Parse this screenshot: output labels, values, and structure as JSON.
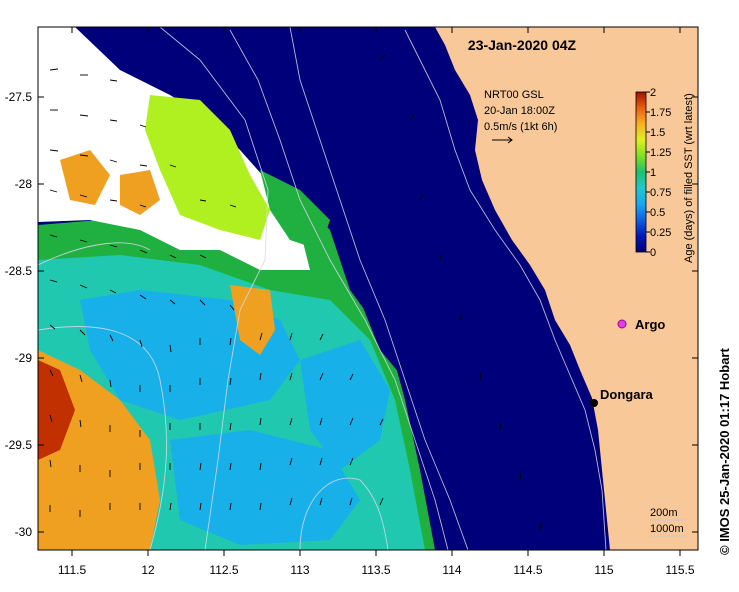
{
  "map": {
    "date_label": "23-Jan-2020 04Z",
    "credit": "© IMOS 25-Jan-2020 01:17 Hobart",
    "x_ticks": [
      "111.5",
      "12",
      "112.5",
      "113",
      "113.5",
      "114",
      "114.5",
      "115",
      "115.5"
    ],
    "y_ticks": [
      "-27.5",
      "-28",
      "-28.5",
      "-29",
      "-29.5",
      "-30"
    ],
    "current_legend": {
      "line1": "NRT00 GSL",
      "line2": "20-Jan 18:00Z",
      "line3": "0.5m/s (1kt 6h)"
    },
    "colorbar": {
      "label": "Age (days) of filled SST (wrt latest)",
      "ticks": [
        "2",
        "1.75",
        "1.5",
        "1.25",
        "1",
        "0.75",
        "0.5",
        "0.25",
        "0"
      ],
      "colors": [
        "#00007a",
        "#0020c8",
        "#1a80e8",
        "#20c0d8",
        "#20c8a0",
        "#20b040",
        "#a8f020",
        "#f0f020",
        "#f0a020",
        "#e86010",
        "#b01000"
      ]
    },
    "places": {
      "argo": "Argo",
      "dongara": "Dongara"
    },
    "isobaths": {
      "a": "200m",
      "b": "1000m"
    },
    "colors": {
      "ocean_deep": "#00007a",
      "land": "#f8c898",
      "marker_argo": "#e040e0"
    }
  }
}
